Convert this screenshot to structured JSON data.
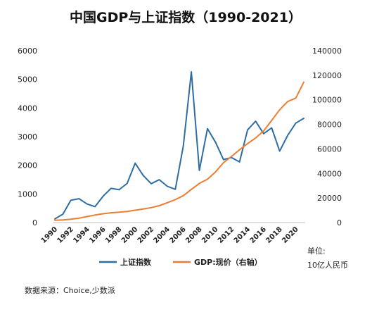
{
  "chart_data": {
    "type": "line",
    "title": "中国GDP与上证指数（1990-2021）",
    "x": [
      1990,
      1991,
      1992,
      1993,
      1994,
      1995,
      1996,
      1997,
      1998,
      1999,
      2000,
      2001,
      2002,
      2003,
      2004,
      2005,
      2006,
      2007,
      2008,
      2009,
      2010,
      2011,
      2012,
      2013,
      2014,
      2015,
      2016,
      2017,
      2018,
      2019,
      2020,
      2021
    ],
    "x_tick_labels": [
      "1990",
      "1992",
      "1994",
      "1996",
      "1998",
      "2000",
      "2002",
      "2004",
      "2006",
      "2008",
      "2010",
      "2012",
      "2014",
      "2016",
      "2018",
      "2020"
    ],
    "y_left_ticks": [
      "0",
      "1000",
      "2000",
      "3000",
      "4000",
      "5000",
      "6000"
    ],
    "y_right_ticks": [
      "0",
      "20000",
      "40000",
      "60000",
      "80000",
      "100000",
      "120000",
      "140000"
    ],
    "ylim_left": [
      0,
      6000
    ],
    "ylim_right": [
      0,
      140000
    ],
    "series": [
      {
        "name": "上证指数",
        "axis": "left",
        "color": "#2E6DA4",
        "values": [
          128,
          292,
          780,
          833,
          648,
          555,
          917,
          1194,
          1147,
          1367,
          2073,
          1646,
          1358,
          1497,
          1267,
          1161,
          2675,
          5262,
          1821,
          3277,
          2808,
          2199,
          2269,
          2116,
          3235,
          3539,
          3104,
          3307,
          2494,
          3050,
          3473,
          3640
        ]
      },
      {
        "name": "GDP:现价（右轴）",
        "axis": "right",
        "color": "#ED7D31",
        "values": [
          1887,
          2200,
          2719,
          3567,
          4864,
          6134,
          7181,
          7972,
          8520,
          9056,
          10028,
          11086,
          12172,
          13742,
          16184,
          18732,
          21944,
          27023,
          31924,
          35304,
          41212,
          48794,
          53858,
          59296,
          64356,
          68886,
          74640,
          83204,
          91928,
          98652,
          101357,
          114367
        ]
      }
    ],
    "unit_note_line1": "单位:",
    "unit_note_line2": "10亿人民币",
    "source": "数据来源：Choice,少数派",
    "legend": "bottom"
  }
}
